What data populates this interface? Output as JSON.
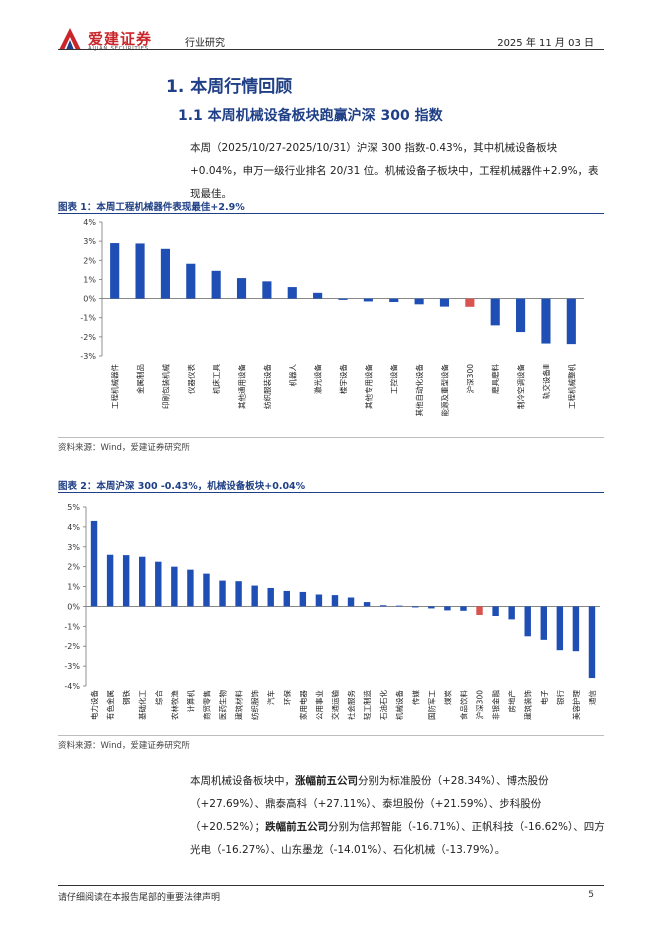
{
  "header": {
    "logo_cn": "爱建证券",
    "logo_en": "AIJIAN SECURITIES",
    "category": "行业研究",
    "date": "2025 年 11 月 03 日"
  },
  "section": {
    "h1": "1.  本周行情回顾",
    "h2": "1.1 本周机械设备板块跑赢沪深 300 指数",
    "para1": "本周（2025/10/27-2025/10/31）沪深 300 指数-0.43%，其中机械设备板块+0.04%，申万一级行业排名 20/31 位。机械设备子板块中，工程机械器件+2.9%，表现最佳。"
  },
  "figure1": {
    "title": "图表 1：本周工程机械器件表现最佳+2.9%",
    "source": "资料来源：Wind，爱建证券研究所"
  },
  "figure2": {
    "title": "图表 2：本周沪深 300 -0.43%，机械设备板块+0.04%",
    "source": "资料来源：Wind，爱建证券研究所"
  },
  "para2": {
    "p1": "本周机械设备板块中，",
    "b1": "涨幅前五公司",
    "p2": "分别为标准股份（+28.34%）、博杰股份（+27.69%）、鼎泰高科（+27.11%）、泰坦股份（+21.59%）、步科股份（+20.52%）；",
    "b2": "跌幅前五公司",
    "p3": "分别为信邦智能（-16.71%）、正帆科技（-16.62%）、四方光电（-16.27%）、山东墨龙（-14.01%）、石化机械（-13.79%）。"
  },
  "footer": {
    "note": "请仔细阅读在本报告尾部的重要法律声明",
    "page": "5"
  },
  "colors": {
    "bar": "#1f4eb4",
    "highlight": "#d9534f",
    "title": "#1f3f86",
    "logo": "#c9262b"
  },
  "chart_data": [
    {
      "type": "bar",
      "title": "图表 1：本周工程机械器件表现最佳+2.9%",
      "ylim": [
        -3,
        4
      ],
      "yticks": [
        4,
        3,
        2,
        1,
        0,
        -1,
        -2,
        -3
      ],
      "ytick_suffix": "%",
      "highlight": [
        "沪深300"
      ],
      "categories": [
        "工程机械器件",
        "金属制品",
        "印刷包装机械",
        "仪器仪表",
        "机床工具",
        "其他通用设备",
        "纺织服装设备",
        "机器人",
        "激光设备",
        "楼宇设备",
        "其他专用设备",
        "工控设备",
        "其他自动化设备",
        "能源及重型设备",
        "沪深300",
        "磨具磨料",
        "制冷空调设备",
        "轨交设备Ⅲ",
        "工程机械整机"
      ],
      "values": [
        2.9,
        2.88,
        2.6,
        1.82,
        1.45,
        1.07,
        0.9,
        0.6,
        0.3,
        -0.07,
        -0.15,
        -0.18,
        -0.3,
        -0.42,
        -0.43,
        -1.4,
        -1.75,
        -2.35,
        -2.38
      ]
    },
    {
      "type": "bar",
      "title": "图表 2：本周沪深 300 -0.43%，机械设备板块+0.04%",
      "ylim": [
        -4,
        5
      ],
      "yticks": [
        5,
        4,
        3,
        2,
        1,
        0,
        -1,
        -2,
        -3,
        -4
      ],
      "ytick_suffix": "%",
      "highlight": [
        "沪深300"
      ],
      "categories": [
        "电力设备",
        "有色金属",
        "钢铁",
        "基础化工",
        "综合",
        "农林牧渔",
        "计算机",
        "商贸零售",
        "医药生物",
        "建筑材料",
        "纺织服饰",
        "汽车",
        "环保",
        "家用电器",
        "公用事业",
        "交通运输",
        "社会服务",
        "轻工制造",
        "石油石化",
        "机械设备",
        "传媒",
        "国防军工",
        "煤炭",
        "食品饮料",
        "沪深300",
        "非银金融",
        "房地产",
        "建筑装饰",
        "电子",
        "银行",
        "美容护理",
        "通信"
      ],
      "values": [
        4.3,
        2.6,
        2.58,
        2.5,
        2.25,
        2.0,
        1.85,
        1.65,
        1.3,
        1.27,
        1.05,
        0.93,
        0.78,
        0.73,
        0.6,
        0.57,
        0.45,
        0.22,
        0.06,
        0.04,
        -0.05,
        -0.1,
        -0.2,
        -0.22,
        -0.43,
        -0.48,
        -0.65,
        -1.5,
        -1.68,
        -2.2,
        -2.25,
        -3.6
      ]
    }
  ]
}
